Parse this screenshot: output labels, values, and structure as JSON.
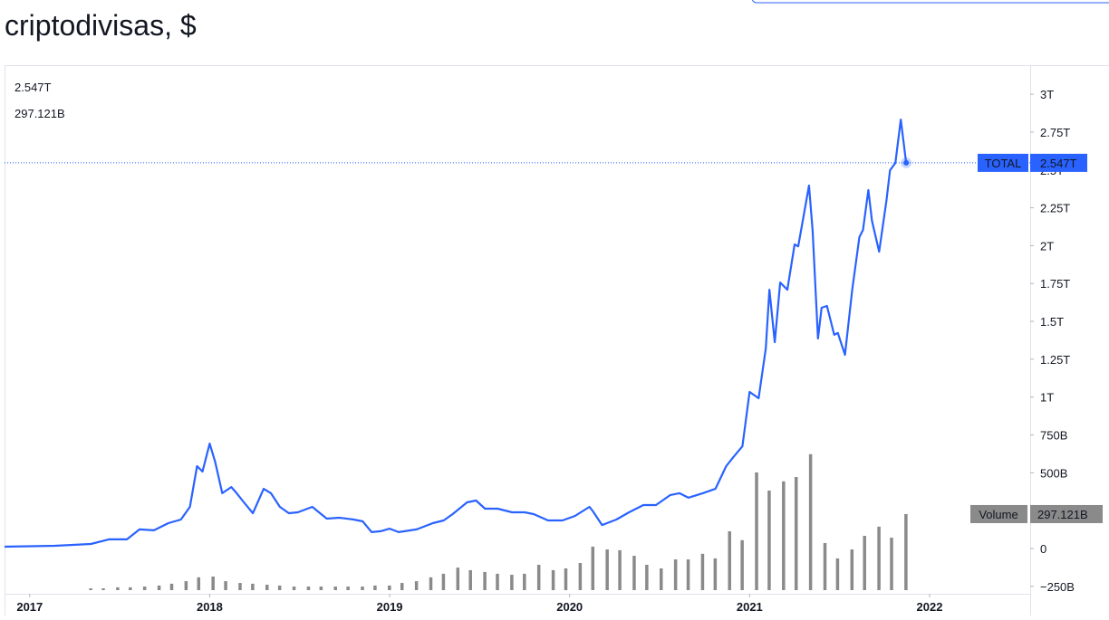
{
  "chart_data": {
    "type": "line",
    "title": "criptodivisas, $",
    "xlim": [
      2016.86,
      2022.559
    ],
    "xticks": [
      2017,
      2018,
      2019,
      2020,
      2021,
      2022
    ],
    "ylim": [
      -299,
      3192
    ],
    "yticks": [
      {
        "value": -250,
        "label": "−250B"
      },
      0,
      {
        "value": 250,
        "label": "250B"
      },
      {
        "value": 500,
        "label": "500B"
      },
      {
        "value": 750,
        "label": "750B"
      },
      {
        "value": 1000,
        "label": "1T"
      },
      {
        "value": 1250,
        "label": "1.25T"
      },
      {
        "value": 1500,
        "label": "1.5T"
      },
      {
        "value": 1750,
        "label": "1.75T"
      },
      {
        "value": 2000,
        "label": "2T"
      },
      {
        "value": 2250,
        "label": "2.25T"
      },
      {
        "value": 2500,
        "label": "2.5T"
      },
      {
        "value": 2750,
        "label": "2.75T"
      },
      {
        "value": 3000,
        "label": "3T"
      }
    ],
    "y2lim": [
      0,
      1800
    ],
    "grid": false,
    "series": [
      {
        "name": "TOTAL",
        "color": "#2962ff",
        "last_label": "2.547T",
        "x": [
          2016.86,
          2017.14,
          2017.34,
          2017.44,
          2017.54,
          2017.61,
          2017.69,
          2017.77,
          2017.84,
          2017.89,
          2017.93,
          2017.96,
          2018.0,
          2018.03,
          2018.07,
          2018.12,
          2018.15,
          2018.19,
          2018.24,
          2018.3,
          2018.34,
          2018.39,
          2018.44,
          2018.49,
          2018.57,
          2018.65,
          2018.72,
          2018.8,
          2018.85,
          2018.9,
          2018.95,
          2019.0,
          2019.05,
          2019.15,
          2019.24,
          2019.3,
          2019.35,
          2019.43,
          2019.48,
          2019.53,
          2019.6,
          2019.68,
          2019.75,
          2019.8,
          2019.88,
          2019.96,
          2020.03,
          2020.11,
          2020.13,
          2020.18,
          2020.26,
          2020.33,
          2020.41,
          2020.48,
          2020.56,
          2020.61,
          2020.66,
          2020.74,
          2020.81,
          2020.87,
          2020.91,
          2020.96,
          2021.0,
          2021.05,
          2021.09,
          2021.11,
          2021.14,
          2021.17,
          2021.21,
          2021.25,
          2021.27,
          2021.33,
          2021.35,
          2021.38,
          2021.4,
          2021.43,
          2021.47,
          2021.49,
          2021.53,
          2021.57,
          2021.61,
          2021.63,
          2021.66,
          2021.68,
          2021.72,
          2021.76,
          2021.78,
          2021.81,
          2021.84,
          2021.87
        ],
        "values": [
          12,
          18,
          30,
          60,
          60,
          126,
          120,
          167,
          191,
          275,
          544,
          508,
          693,
          574,
          365,
          406,
          365,
          305,
          233,
          394,
          365,
          275,
          233,
          239,
          275,
          197,
          203,
          191,
          179,
          108,
          114,
          131,
          108,
          126,
          167,
          185,
          227,
          305,
          317,
          263,
          263,
          239,
          239,
          227,
          185,
          185,
          215,
          275,
          245,
          155,
          191,
          239,
          287,
          287,
          353,
          365,
          335,
          365,
          394,
          544,
          604,
          675,
          1034,
          992,
          1321,
          1709,
          1363,
          1757,
          1709,
          2008,
          1996,
          2397,
          2098,
          1387,
          1590,
          1602,
          1411,
          1423,
          1279,
          1709,
          2056,
          2104,
          2367,
          2164,
          1960,
          2295,
          2498,
          2546,
          2833,
          2547
        ]
      },
      {
        "name": "Volume",
        "color": "#8a8a8a",
        "axis": "y2",
        "last_label": "297.121B",
        "x": [
          2017.34,
          2017.41,
          2017.49,
          2017.56,
          2017.64,
          2017.72,
          2017.79,
          2017.87,
          2017.94,
          2018.02,
          2018.09,
          2018.17,
          2018.24,
          2018.32,
          2018.39,
          2018.47,
          2018.55,
          2018.62,
          2018.7,
          2018.77,
          2018.85,
          2018.92,
          2019.0,
          2019.07,
          2019.15,
          2019.23,
          2019.3,
          2019.38,
          2019.45,
          2019.53,
          2019.6,
          2019.68,
          2019.75,
          2019.83,
          2019.91,
          2019.98,
          2020.06,
          2020.13,
          2020.21,
          2020.28,
          2020.36,
          2020.43,
          2020.51,
          2020.59,
          2020.66,
          2020.74,
          2020.81,
          2020.89,
          2020.96,
          2021.04,
          2021.11,
          2021.19,
          2021.26,
          2021.34,
          2021.42,
          2021.49,
          2021.57,
          2021.64,
          2021.72,
          2021.79,
          2021.87
        ],
        "values": [
          7,
          7,
          11,
          11,
          14,
          18,
          25,
          35,
          50,
          53,
          35,
          28,
          25,
          21,
          18,
          14,
          14,
          14,
          14,
          14,
          14,
          18,
          18,
          28,
          35,
          50,
          64,
          88,
          78,
          71,
          64,
          60,
          64,
          99,
          78,
          85,
          106,
          170,
          159,
          156,
          134,
          99,
          85,
          120,
          120,
          142,
          124,
          230,
          195,
          460,
          389,
          425,
          442,
          531,
          184,
          124,
          159,
          212,
          248,
          205,
          297.121
        ]
      }
    ]
  }
}
